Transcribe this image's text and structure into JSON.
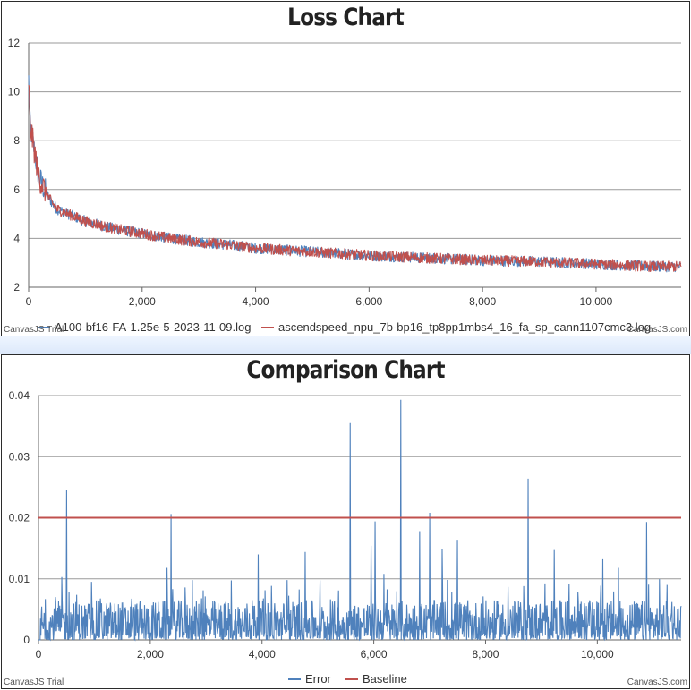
{
  "charts": {
    "loss": {
      "title": "Loss Chart",
      "legend": [
        {
          "name": "A100-bf16-FA-1.25e-5-2023-11-09.log",
          "visible_text": "A100-bf16-FA-1.25e-5-2023-11-09.log",
          "color": "#4f81bc"
        },
        {
          "name": "ascendspeed_npu_7b-bp16_tp8pp1mbs4_16_fa_sp_cann1107cmc3.log",
          "visible_text": "ascendspeed_npu_7b-bp16_tp8pp1mbs4_16_fa_sp_cann1107cmc3.log",
          "color": "#c0504d"
        }
      ],
      "credit_left": "CanvasJS Trial",
      "credit_right": "CanvasJS.com"
    },
    "comparison": {
      "title": "Comparison Chart",
      "legend": [
        {
          "name": "Error",
          "color": "#4f81bc"
        },
        {
          "name": "Baseline",
          "color": "#c0504d"
        }
      ],
      "credit_left": "CanvasJS Trial",
      "credit_right": "CanvasJS.com"
    }
  },
  "chart_data": [
    {
      "type": "line",
      "title": "Loss Chart",
      "xlabel": "",
      "ylabel": "",
      "xlim": [
        0,
        11500
      ],
      "ylim": [
        2,
        12
      ],
      "xticks": [
        0,
        2000,
        4000,
        6000,
        8000,
        10000
      ],
      "xtick_labels": [
        "0",
        "2,000",
        "4,000",
        "6,000",
        "8,000",
        "10,000"
      ],
      "yticks": [
        2,
        4,
        6,
        8,
        10,
        12
      ],
      "grid": true,
      "legend_position": "bottom",
      "series": [
        {
          "name": "A100-bf16-FA-1.25e-5-2023-11-09.log",
          "color": "#4f81bc",
          "x": [
            0,
            25,
            50,
            100,
            150,
            200,
            300,
            400,
            500,
            700,
            1000,
            1500,
            2000,
            2500,
            3000,
            3500,
            4000,
            5000,
            6000,
            7000,
            8000,
            9000,
            10000,
            11000,
            11500
          ],
          "y": [
            10.5,
            8.6,
            8.3,
            7.6,
            6.9,
            6.4,
            5.9,
            5.5,
            5.2,
            5.0,
            4.7,
            4.4,
            4.2,
            4.0,
            3.85,
            3.75,
            3.6,
            3.45,
            3.3,
            3.2,
            3.1,
            3.05,
            2.95,
            2.85,
            2.85
          ]
        },
        {
          "name": "ascendspeed_npu_7b-bp16_tp8pp1mbs4_16_fa_sp_cann1107cmc3.log",
          "color": "#c0504d",
          "x": [
            0,
            25,
            50,
            100,
            150,
            200,
            300,
            400,
            500,
            700,
            1000,
            1500,
            2000,
            2500,
            3000,
            3500,
            4000,
            5000,
            6000,
            7000,
            8000,
            9000,
            10000,
            11000,
            11500
          ],
          "y": [
            10.5,
            8.6,
            8.3,
            7.6,
            6.9,
            6.4,
            5.9,
            5.5,
            5.2,
            5.0,
            4.7,
            4.4,
            4.2,
            4.0,
            3.85,
            3.75,
            3.6,
            3.45,
            3.3,
            3.2,
            3.1,
            3.05,
            2.95,
            2.85,
            2.85
          ]
        }
      ]
    },
    {
      "type": "line",
      "title": "Comparison Chart",
      "xlabel": "",
      "ylabel": "",
      "xlim": [
        0,
        11500
      ],
      "ylim": [
        0,
        0.04
      ],
      "xticks": [
        0,
        2000,
        4000,
        6000,
        8000,
        10000
      ],
      "xtick_labels": [
        "0",
        "2,000",
        "4,000",
        "6,000",
        "8,000",
        "10,000"
      ],
      "yticks": [
        0,
        0.01,
        0.02,
        0.03,
        0.04
      ],
      "ytick_labels": [
        "0",
        "0.01",
        "0.02",
        "0.03",
        "0.04"
      ],
      "grid": true,
      "legend_position": "bottom",
      "series": [
        {
          "name": "Error",
          "color": "#4f81bc",
          "baseline_level": 0.003,
          "spikes": [
            {
              "x": 420,
              "y": 0.0103
            },
            {
              "x": 500,
              "y": 0.0245
            },
            {
              "x": 950,
              "y": 0.0095
            },
            {
              "x": 2300,
              "y": 0.0118
            },
            {
              "x": 2370,
              "y": 0.0206
            },
            {
              "x": 2750,
              "y": 0.0098
            },
            {
              "x": 3930,
              "y": 0.014
            },
            {
              "x": 4450,
              "y": 0.0098
            },
            {
              "x": 4770,
              "y": 0.0144
            },
            {
              "x": 5580,
              "y": 0.0355
            },
            {
              "x": 5950,
              "y": 0.0154
            },
            {
              "x": 6020,
              "y": 0.0194
            },
            {
              "x": 6180,
              "y": 0.0108
            },
            {
              "x": 6480,
              "y": 0.0393
            },
            {
              "x": 6820,
              "y": 0.0178
            },
            {
              "x": 7000,
              "y": 0.0208
            },
            {
              "x": 7220,
              "y": 0.0148
            },
            {
              "x": 7500,
              "y": 0.0164
            },
            {
              "x": 8680,
              "y": 0.0088
            },
            {
              "x": 8760,
              "y": 0.0264
            },
            {
              "x": 9230,
              "y": 0.0147
            },
            {
              "x": 10100,
              "y": 0.0132
            },
            {
              "x": 10380,
              "y": 0.0118
            },
            {
              "x": 10880,
              "y": 0.0193
            },
            {
              "x": 11250,
              "y": 0.009
            }
          ]
        },
        {
          "name": "Baseline",
          "color": "#c0504d",
          "x": [
            0,
            11500
          ],
          "y": [
            0.02,
            0.02
          ]
        }
      ]
    }
  ]
}
